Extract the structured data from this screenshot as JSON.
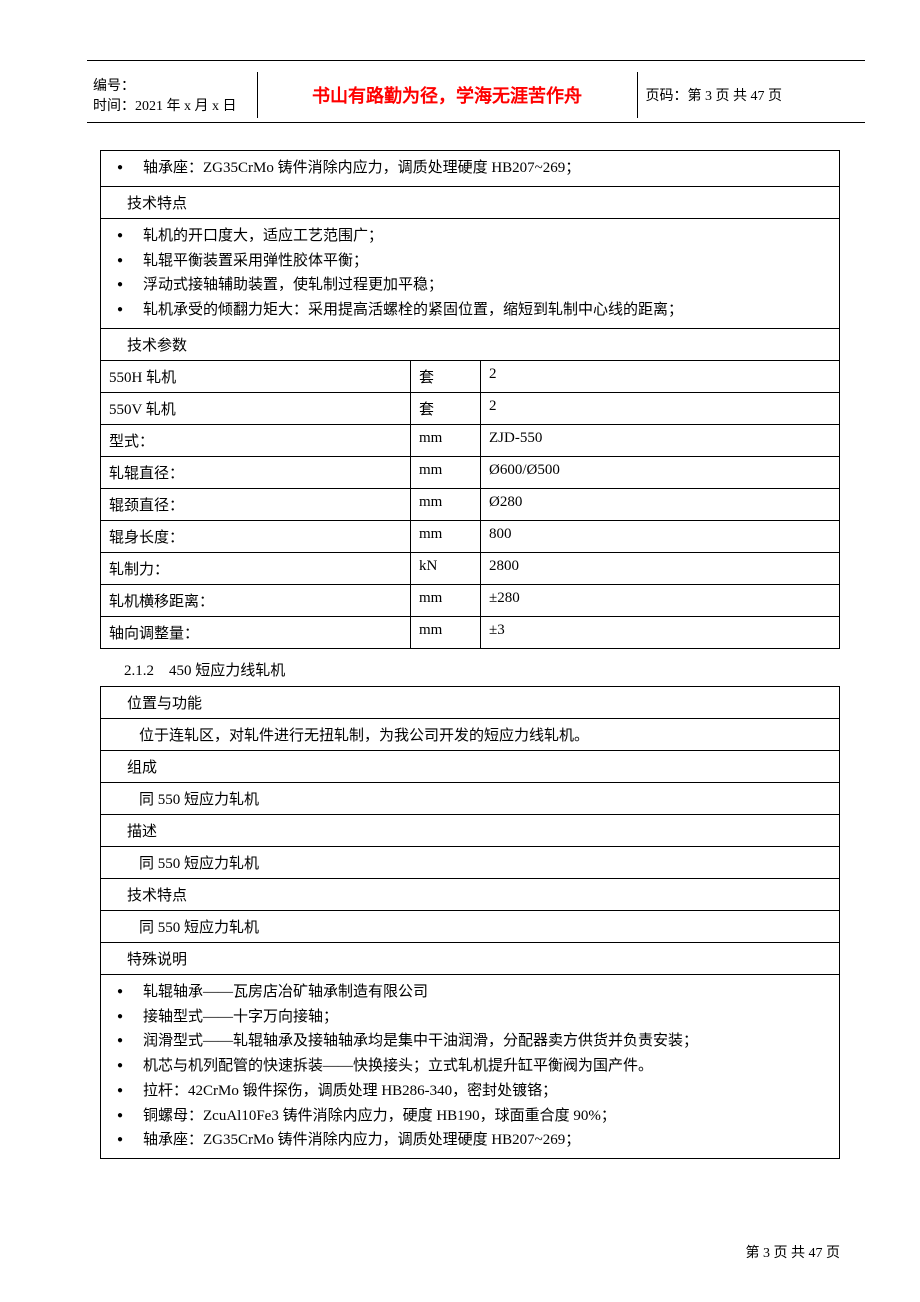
{
  "header": {
    "doc_no_label": "编号：",
    "date_label": "时间：2021 年 x 月 x 日",
    "motto": "书山有路勤为径，学海无涯苦作舟",
    "page_label": "页码：第 3 页 共 47 页"
  },
  "table1": {
    "bearing_seat": "轴承座：ZG35CrMo 铸件消除内应力，调质处理硬度 HB207~269；",
    "tech_feature_title": "技术特点",
    "features": [
      "轧机的开口度大，适应工艺范围广；",
      "轧辊平衡装置采用弹性胶体平衡；",
      "浮动式接轴辅助装置，使轧制过程更加平稳；",
      "轧机承受的倾翻力矩大：采用提高活螺栓的紧固位置，缩短到轧制中心线的距离；"
    ],
    "tech_param_title": "技术参数",
    "rows": [
      {
        "name": "550H 轧机",
        "unit": "套",
        "val": "2"
      },
      {
        "name": "550V 轧机",
        "unit": "套",
        "val": "2"
      },
      {
        "name": "型式：",
        "unit": "mm",
        "val": "ZJD-550"
      },
      {
        "name": "轧辊直径：",
        "unit": "mm",
        "val": "Ø600/Ø500"
      },
      {
        "name": "辊颈直径：",
        "unit": "mm",
        "val": "Ø280"
      },
      {
        "name": "辊身长度：",
        "unit": "mm",
        "val": "800"
      },
      {
        "name": "轧制力：",
        "unit": "kN",
        "val": "2800"
      },
      {
        "name": "轧机横移距离：",
        "unit": "mm",
        "val": "±280"
      },
      {
        "name": "轴向调整量：",
        "unit": "mm",
        "val": "±3"
      }
    ]
  },
  "section_heading": "2.1.2　450 短应力线轧机",
  "table2": {
    "pos_func_title": "位置与功能",
    "pos_func_text": "位于连轧区，对轧件进行无扭轧制，为我公司开发的短应力线轧机。",
    "compose_title": "组成",
    "compose_text": "同 550 短应力轧机",
    "desc_title": "描述",
    "desc_text": "同 550 短应力轧机",
    "tech_feature_title": "技术特点",
    "tech_feature_text": "同 550 短应力轧机",
    "special_title": "特殊说明",
    "special_items": [
      "轧辊轴承——瓦房店冶矿轴承制造有限公司",
      "接轴型式——十字万向接轴；",
      "润滑型式——轧辊轴承及接轴轴承均是集中干油润滑，分配器卖方供货并负责安装；",
      "机芯与机列配管的快速拆装——快换接头；立式轧机提升缸平衡阀为国产件。",
      "拉杆：42CrMo 锻件探伤，调质处理 HB286-340，密封处镀铬；",
      "铜螺母：ZcuAl10Fe3 铸件消除内应力，硬度 HB190，球面重合度 90%；",
      "轴承座：ZG35CrMo 铸件消除内应力，调质处理硬度 HB207~269；"
    ]
  },
  "footer": "第 3 页 共 47 页"
}
